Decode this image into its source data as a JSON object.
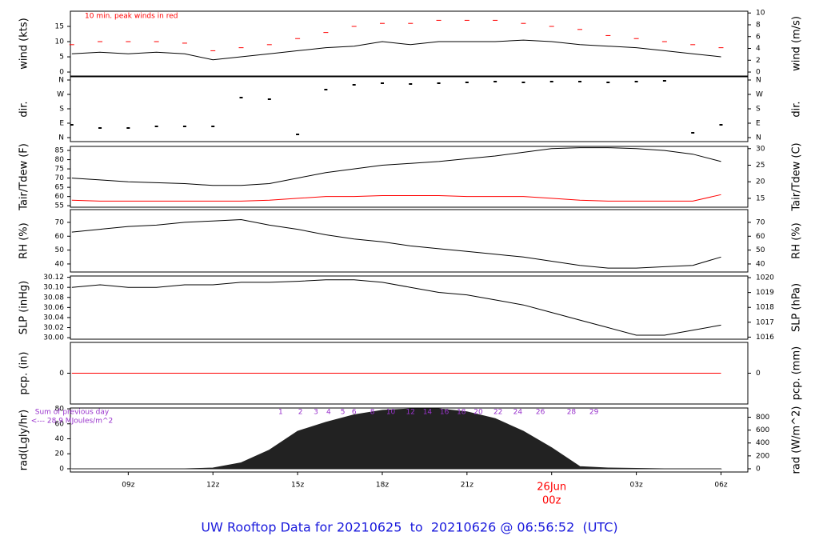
{
  "chart_data": [
    {
      "type": "line",
      "ylabel": "wind (kts)",
      "y2label": "wind (m/s)",
      "annotation": "10 min. peak winds in red",
      "xlim": [
        6.95,
        30.95
      ],
      "ylim": [
        -1.3,
        20
      ],
      "yticks": [
        0,
        5,
        10,
        15
      ],
      "y2lim": [
        -0.67,
        10.3
      ],
      "y2ticks": [
        0,
        2,
        4,
        6,
        8,
        10
      ],
      "x": [
        7,
        8,
        9,
        10,
        11,
        12,
        13,
        14,
        15,
        16,
        17,
        18,
        19,
        20,
        21,
        22,
        23,
        24,
        25,
        26,
        27,
        28,
        29,
        30
      ],
      "series": [
        {
          "color": "#000000",
          "mark": "line",
          "values": [
            6,
            6.5,
            6,
            6.5,
            6,
            4,
            5,
            6,
            7,
            8,
            8.5,
            10,
            9,
            10,
            10,
            10,
            10.5,
            10,
            9,
            8.5,
            8,
            7,
            6,
            5
          ]
        },
        {
          "color": "#ff0000",
          "mark": "dash",
          "values": [
            9,
            10,
            10,
            10,
            9.5,
            7,
            8,
            9,
            11,
            13,
            15,
            16,
            16,
            17,
            17,
            17,
            16,
            15,
            14,
            12,
            11,
            10,
            9,
            8
          ]
        }
      ]
    },
    {
      "type": "scatter",
      "ylabel": "dir.",
      "y2label": "dir.",
      "xlim": [
        6.95,
        30.95
      ],
      "ylim": [
        -25,
        380
      ],
      "yticks": [
        {
          "value": 0,
          "label": "N"
        },
        {
          "value": 90,
          "label": "E"
        },
        {
          "value": 180,
          "label": "S"
        },
        {
          "value": 270,
          "label": "W"
        },
        {
          "value": 360,
          "label": "N"
        }
      ],
      "y2lim": [
        -25,
        380
      ],
      "y2ticks": [
        {
          "value": 0,
          "label": "N"
        },
        {
          "value": 90,
          "label": "E"
        },
        {
          "value": 180,
          "label": "S"
        },
        {
          "value": 270,
          "label": "W"
        },
        {
          "value": 360,
          "label": "N"
        }
      ],
      "x": [
        7,
        8,
        9,
        10,
        11,
        12,
        13,
        14,
        15,
        16,
        17,
        18,
        19,
        20,
        21,
        22,
        23,
        24,
        25,
        26,
        27,
        28,
        29,
        30
      ],
      "series": [
        {
          "color": "#000000",
          "values": [
            80,
            60,
            60,
            70,
            70,
            70,
            250,
            240,
            20,
            300,
            330,
            340,
            335,
            340,
            345,
            350,
            345,
            350,
            350,
            345,
            350,
            355,
            30,
            80
          ]
        }
      ]
    },
    {
      "type": "line",
      "ylabel": "Tair/Tdew (F)",
      "y2label": "Tair/Tdew (C)",
      "xlim": [
        6.95,
        30.95
      ],
      "ylim": [
        54.2,
        87.2
      ],
      "yticks": [
        55,
        60,
        65,
        70,
        75,
        80,
        85
      ],
      "y2lim": [
        12.33,
        30.67
      ],
      "y2ticks": [
        15,
        20,
        25,
        30
      ],
      "x": [
        7,
        8,
        9,
        10,
        11,
        12,
        13,
        14,
        15,
        16,
        17,
        18,
        19,
        20,
        21,
        22,
        23,
        24,
        25,
        26,
        27,
        28,
        29,
        30
      ],
      "series": [
        {
          "color": "#000000",
          "mark": "line",
          "values": [
            70,
            69,
            68,
            67.5,
            67,
            66,
            66,
            67,
            70,
            73,
            75,
            77,
            78,
            79,
            80.5,
            82,
            84,
            86,
            86.5,
            86.5,
            86,
            85,
            83,
            79
          ]
        },
        {
          "color": "#ff0000",
          "mark": "line",
          "values": [
            58,
            57.5,
            57.5,
            57.5,
            57.5,
            57.5,
            57.5,
            58,
            59,
            60,
            60,
            60.5,
            60.5,
            60.5,
            60,
            60,
            60,
            59,
            58,
            57.5,
            57.5,
            57.5,
            57.5,
            61
          ]
        }
      ]
    },
    {
      "type": "line",
      "ylabel": "RH (%)",
      "y2label": "RH (%)",
      "xlim": [
        6.95,
        30.95
      ],
      "ylim": [
        34.2,
        79.2
      ],
      "yticks": [
        40,
        50,
        60,
        70
      ],
      "y2lim": [
        34.2,
        79.2
      ],
      "y2ticks": [
        40,
        50,
        60,
        70
      ],
      "x": [
        7,
        8,
        9,
        10,
        11,
        12,
        13,
        14,
        15,
        16,
        17,
        18,
        19,
        20,
        21,
        22,
        23,
        24,
        25,
        26,
        27,
        28,
        29,
        30
      ],
      "series": [
        {
          "color": "#000000",
          "mark": "line",
          "values": [
            63,
            65,
            67,
            68,
            70,
            71,
            72,
            68,
            65,
            61,
            58,
            56,
            53,
            51,
            49,
            47,
            45,
            42,
            39,
            37,
            37,
            38,
            39,
            45
          ]
        }
      ]
    },
    {
      "type": "line",
      "ylabel": "SLP (inHg)",
      "y2label": "SLP (hPa)",
      "xlim": [
        6.95,
        30.95
      ],
      "ylim": [
        29.997,
        30.1225
      ],
      "yticks": [
        {
          "value": 30,
          "label": "30.00"
        },
        {
          "value": 30.02,
          "label": "30.02"
        },
        {
          "value": 30.04,
          "label": "30.04"
        },
        {
          "value": 30.06,
          "label": "30.06"
        },
        {
          "value": 30.08,
          "label": "30.08"
        },
        {
          "value": 30.1,
          "label": "30.10"
        },
        {
          "value": 30.12,
          "label": "30.12"
        }
      ],
      "y2lim": [
        1015.86,
        1020.11
      ],
      "y2ticks": [
        1016,
        1017,
        1018,
        1019,
        1020
      ],
      "x": [
        7,
        8,
        9,
        10,
        11,
        12,
        13,
        14,
        15,
        16,
        17,
        18,
        19,
        20,
        21,
        22,
        23,
        24,
        25,
        26,
        27,
        28,
        29,
        30
      ],
      "series": [
        {
          "color": "#000000",
          "mark": "line",
          "values": [
            30.1,
            30.105,
            30.1,
            30.1,
            30.105,
            30.105,
            30.11,
            30.11,
            30.112,
            30.115,
            30.115,
            30.11,
            30.1,
            30.09,
            30.085,
            30.075,
            30.065,
            30.05,
            30.035,
            30.02,
            30.005,
            30.005,
            30.015,
            30.025
          ]
        }
      ]
    },
    {
      "type": "line",
      "ylabel": "pcp. (in)",
      "y2label": "pcp. (mm)",
      "xlim": [
        6.95,
        30.95
      ],
      "ylim": [
        -1,
        1
      ],
      "yticks": [
        0
      ],
      "y2lim": [
        -1,
        1
      ],
      "y2ticks": [
        0
      ],
      "x": [
        7,
        8,
        9,
        10,
        11,
        12,
        13,
        14,
        15,
        16,
        17,
        18,
        19,
        20,
        21,
        22,
        23,
        24,
        25,
        26,
        27,
        28,
        29,
        30
      ],
      "series": [
        {
          "color": "#ff0000",
          "mark": "line",
          "values": [
            0,
            0,
            0,
            0,
            0,
            0,
            0,
            0,
            0,
            0,
            0,
            0,
            0,
            0,
            0,
            0,
            0,
            0,
            0,
            0,
            0,
            0,
            0,
            0
          ]
        }
      ]
    },
    {
      "type": "area",
      "ylabel": "rad(Lgly/hr)",
      "y2label": "rad (W/m^2)",
      "annotations": [
        "Sum of previous day",
        "<--- 28.9 MJoules/m^2"
      ],
      "xlim": [
        6.95,
        30.95
      ],
      "ylim": [
        -4.3,
        81.1
      ],
      "yticks": [
        0,
        20,
        40,
        60,
        80
      ],
      "y2lim": [
        -50,
        943
      ],
      "y2ticks": [
        0,
        200,
        400,
        600,
        800
      ],
      "x": [
        7,
        8,
        9,
        10,
        11,
        12,
        13,
        14,
        15,
        16,
        17,
        18,
        19,
        20,
        21,
        22,
        23,
        24,
        25,
        26,
        27,
        28,
        29,
        30
      ],
      "series": [
        {
          "color": "#222222",
          "values": [
            0,
            0,
            0,
            0,
            0,
            1,
            8,
            25,
            50,
            62,
            72,
            78,
            80,
            80,
            76,
            67,
            50,
            28,
            3,
            1,
            0.5,
            0,
            0,
            0
          ]
        }
      ],
      "cumulative": {
        "color": "#9933cc",
        "x": [
          14.4,
          15.1,
          15.65,
          16.1,
          16.6,
          17,
          17.65,
          18.3,
          19,
          19.6,
          20.2,
          20.8,
          21.4,
          22.1,
          22.8,
          23.6,
          24.7,
          25.5
        ],
        "values": [
          1,
          2,
          3,
          4,
          5,
          6,
          8,
          10,
          12,
          14,
          16,
          18,
          20,
          22,
          24,
          26,
          28,
          29
        ]
      },
      "xticks": [
        {
          "value": 9,
          "label": "09z"
        },
        {
          "value": 12,
          "label": "12z"
        },
        {
          "value": 15,
          "label": "15z"
        },
        {
          "value": 18,
          "label": "18z"
        },
        {
          "value": 21,
          "label": "21z"
        },
        {
          "value": 24,
          "label": "00z"
        },
        {
          "value": 27,
          "label": "03z"
        },
        {
          "value": 30,
          "label": "06z"
        }
      ],
      "date_marker": {
        "x": 24,
        "label": "26Jun",
        "color": "#ff0000"
      },
      "title": "UW Rooftop Data for 20210625  to  20210626 @ 06:56:52  (UTC)"
    }
  ]
}
